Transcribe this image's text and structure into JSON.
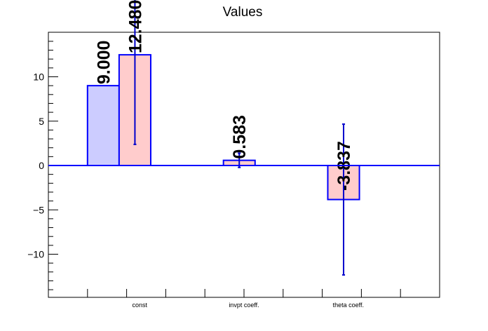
{
  "chart_data": {
    "type": "bar",
    "title": "Values",
    "xlabel": "",
    "ylabel": "",
    "ylim": [
      -15,
      15
    ],
    "y_ticks": [
      -10,
      -5,
      0,
      5,
      10
    ],
    "y_tick_labels": [
      "−10",
      "−5",
      "0",
      "5",
      "10"
    ],
    "categories": [
      "const",
      "invpt coeff.",
      "theta coeff."
    ],
    "grid": false,
    "series": [
      {
        "color": "#ccccff",
        "values": [
          9.0,
          null,
          null
        ],
        "errors": [
          null,
          null,
          null
        ],
        "labels": [
          "9.000",
          "",
          ""
        ]
      },
      {
        "color": "#ffcccc",
        "values": [
          12.48,
          0.583,
          -3.837
        ],
        "errors": [
          10.1,
          0.8,
          8.5
        ],
        "labels": [
          "12.480",
          "0.583",
          "-3.837"
        ]
      }
    ]
  }
}
